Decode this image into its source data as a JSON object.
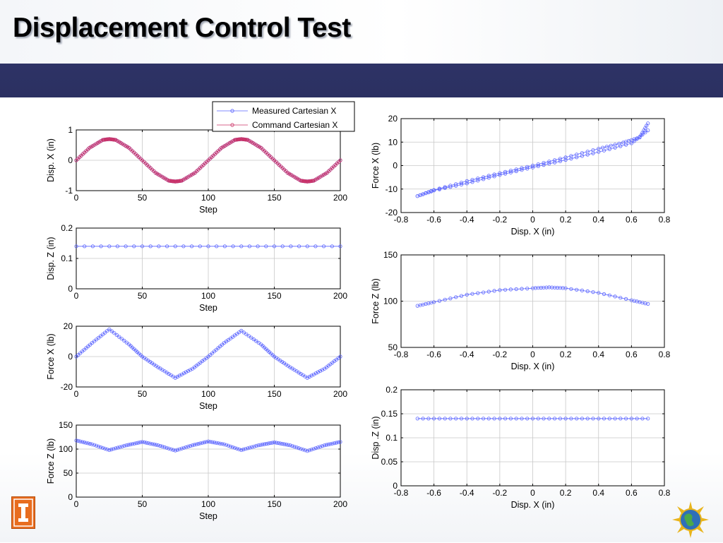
{
  "slide": {
    "title": "Displacement Control Test"
  },
  "colors": {
    "band": "#2d3263",
    "measured": "#5a64ff",
    "command": "#cc3366",
    "grid": "#c8c8c8",
    "logo": "#e86d1f"
  },
  "icons": {
    "logo": "university-logo-icon",
    "globe": "globe-sun-icon"
  },
  "chart_data": [
    {
      "id": "dispx_step",
      "type": "line",
      "xlabel": "Step",
      "ylabel": "Disp. X (in)",
      "xlim": [
        0,
        200
      ],
      "ylim": [
        -1,
        1
      ],
      "xticks": [
        0,
        50,
        100,
        150,
        200
      ],
      "yticks": [
        -1,
        0,
        1
      ],
      "xtick_labels": [
        "0",
        "50",
        "100",
        "150",
        "200"
      ],
      "ytick_labels": [
        "-1",
        "0",
        "1"
      ],
      "grid": true,
      "legend": "top-right, above plot",
      "legend_entries": [
        "Measured Cartesian X",
        "Command Cartesian X"
      ],
      "series": [
        {
          "name": "Measured Cartesian X",
          "x": [
            0,
            10,
            20,
            25,
            30,
            40,
            50,
            60,
            70,
            75,
            80,
            90,
            100,
            110,
            120,
            125,
            130,
            140,
            150,
            160,
            170,
            175,
            180,
            190,
            200
          ],
          "y": [
            0,
            0.41,
            0.67,
            0.7,
            0.67,
            0.41,
            0,
            -0.41,
            -0.67,
            -0.7,
            -0.67,
            -0.41,
            0,
            0.41,
            0.67,
            0.7,
            0.67,
            0.41,
            0,
            -0.41,
            -0.67,
            -0.7,
            -0.67,
            -0.41,
            0
          ]
        },
        {
          "name": "Command Cartesian X",
          "x": [
            0,
            10,
            20,
            25,
            30,
            40,
            50,
            60,
            70,
            75,
            80,
            90,
            100,
            110,
            120,
            125,
            130,
            140,
            150,
            160,
            170,
            175,
            180,
            190,
            200
          ],
          "y": [
            0,
            0.41,
            0.67,
            0.7,
            0.67,
            0.41,
            0,
            -0.41,
            -0.67,
            -0.7,
            -0.67,
            -0.41,
            0,
            0.41,
            0.67,
            0.7,
            0.67,
            0.41,
            0,
            -0.41,
            -0.67,
            -0.7,
            -0.67,
            -0.41,
            0
          ]
        }
      ]
    },
    {
      "id": "dispz_step",
      "type": "line",
      "xlabel": "Step",
      "ylabel": "Disp. Z (in)",
      "xlim": [
        0,
        200
      ],
      "ylim": [
        0,
        0.2
      ],
      "xticks": [
        0,
        50,
        100,
        150,
        200
      ],
      "yticks": [
        0,
        0.1,
        0.2
      ],
      "xtick_labels": [
        "0",
        "50",
        "100",
        "150",
        "200"
      ],
      "ytick_labels": [
        "0",
        "0.1",
        "0.2"
      ],
      "grid": true,
      "series": [
        {
          "x": [
            0,
            50,
            100,
            150,
            200
          ],
          "y": [
            0.14,
            0.14,
            0.14,
            0.14,
            0.14
          ]
        }
      ]
    },
    {
      "id": "forcex_step",
      "type": "line",
      "xlabel": "Step",
      "ylabel": "Force X (lb)",
      "xlim": [
        0,
        200
      ],
      "ylim": [
        -20,
        20
      ],
      "xticks": [
        0,
        50,
        100,
        150,
        200
      ],
      "yticks": [
        -20,
        0,
        20
      ],
      "xtick_labels": [
        "0",
        "50",
        "100",
        "150",
        "200"
      ],
      "ytick_labels": [
        "-20",
        "0",
        "20"
      ],
      "grid": true,
      "series": [
        {
          "x": [
            0,
            12,
            25,
            40,
            50,
            62,
            75,
            88,
            100,
            112,
            125,
            140,
            150,
            162,
            175,
            188,
            200
          ],
          "y": [
            0,
            9,
            18,
            8,
            0,
            -7,
            -14,
            -8,
            0,
            9,
            17,
            8,
            0,
            -7,
            -14,
            -8,
            0
          ]
        }
      ]
    },
    {
      "id": "forcez_step",
      "type": "line",
      "xlabel": "Step",
      "ylabel": "Force Z (lb)",
      "xlim": [
        0,
        200
      ],
      "ylim": [
        0,
        150
      ],
      "xticks": [
        0,
        50,
        100,
        150,
        200
      ],
      "yticks": [
        0,
        50,
        100,
        150
      ],
      "xtick_labels": [
        "0",
        "50",
        "100",
        "150",
        "200"
      ],
      "ytick_labels": [
        "0",
        "50",
        "100",
        "150"
      ],
      "grid": true,
      "series": [
        {
          "x": [
            0,
            12,
            25,
            38,
            50,
            62,
            75,
            88,
            100,
            112,
            125,
            138,
            150,
            162,
            175,
            188,
            200
          ],
          "y": [
            118,
            110,
            98,
            108,
            115,
            108,
            97,
            108,
            116,
            110,
            98,
            108,
            114,
            108,
            96,
            108,
            115
          ]
        }
      ]
    },
    {
      "id": "forcex_dispx",
      "type": "scatter",
      "xlabel": "Disp. X (in)",
      "ylabel": "Force X (lb)",
      "xlim": [
        -0.8,
        0.8
      ],
      "ylim": [
        -20,
        20
      ],
      "xticks": [
        -0.8,
        -0.6,
        -0.4,
        -0.2,
        0,
        0.2,
        0.4,
        0.6,
        0.8
      ],
      "yticks": [
        -20,
        -10,
        0,
        10,
        20
      ],
      "xtick_labels": [
        "-0.8",
        "-0.6",
        "-0.4",
        "-0.2",
        "0",
        "0.2",
        "0.4",
        "0.6",
        "0.8"
      ],
      "ytick_labels": [
        "-20",
        "-10",
        "0",
        "10",
        "20"
      ],
      "grid": true,
      "series": [
        {
          "x": [
            -0.7,
            -0.6,
            -0.4,
            -0.2,
            0,
            0.2,
            0.4,
            0.55,
            0.65,
            0.7
          ],
          "y": [
            -13,
            -10.4,
            -6.6,
            -3.2,
            0,
            3.5,
            7.2,
            9.8,
            12,
            18
          ]
        },
        {
          "x": [
            0.7,
            0.6,
            0.4,
            0.2,
            0,
            -0.2,
            -0.4,
            -0.6,
            -0.7
          ],
          "y": [
            15,
            9.5,
            5.8,
            2.4,
            -0.8,
            -4,
            -7.6,
            -10.6,
            -13
          ]
        }
      ]
    },
    {
      "id": "forcez_dispx",
      "type": "scatter",
      "xlabel": "Disp. X (in)",
      "ylabel": "Force Z (lb)",
      "xlim": [
        -0.8,
        0.8
      ],
      "ylim": [
        50,
        150
      ],
      "xticks": [
        -0.8,
        -0.6,
        -0.4,
        -0.2,
        0,
        0.2,
        0.4,
        0.6,
        0.8
      ],
      "yticks": [
        50,
        100,
        150
      ],
      "xtick_labels": [
        "-0.8",
        "-0.6",
        "-0.4",
        "-0.2",
        "0",
        "0.2",
        "0.4",
        "0.6",
        "0.8"
      ],
      "ytick_labels": [
        "50",
        "100",
        "150"
      ],
      "grid": true,
      "series": [
        {
          "x": [
            -0.7,
            -0.6,
            -0.4,
            -0.2,
            0,
            0.1,
            0.2,
            0.4,
            0.6,
            0.7
          ],
          "y": [
            95,
            99,
            107,
            112,
            114,
            115,
            114,
            109,
            101,
            97
          ]
        }
      ]
    },
    {
      "id": "dispz_dispx",
      "type": "scatter",
      "xlabel": "Disp. X (in)",
      "ylabel": "Disp .Z (in)",
      "xlim": [
        -0.8,
        0.8
      ],
      "ylim": [
        0,
        0.2
      ],
      "xticks": [
        -0.8,
        -0.6,
        -0.4,
        -0.2,
        0,
        0.2,
        0.4,
        0.6,
        0.8
      ],
      "yticks": [
        0,
        0.05,
        0.1,
        0.15,
        0.2
      ],
      "xtick_labels": [
        "-0.8",
        "-0.6",
        "-0.4",
        "-0.2",
        "0",
        "0.2",
        "0.4",
        "0.6",
        "0.8"
      ],
      "ytick_labels": [
        "0",
        "0.05",
        "0.1",
        "0.15",
        "0.2"
      ],
      "grid": true,
      "series": [
        {
          "x": [
            -0.7,
            -0.5,
            -0.3,
            -0.1,
            0.1,
            0.3,
            0.5,
            0.7
          ],
          "y": [
            0.14,
            0.14,
            0.14,
            0.14,
            0.14,
            0.14,
            0.14,
            0.14
          ]
        }
      ]
    }
  ]
}
